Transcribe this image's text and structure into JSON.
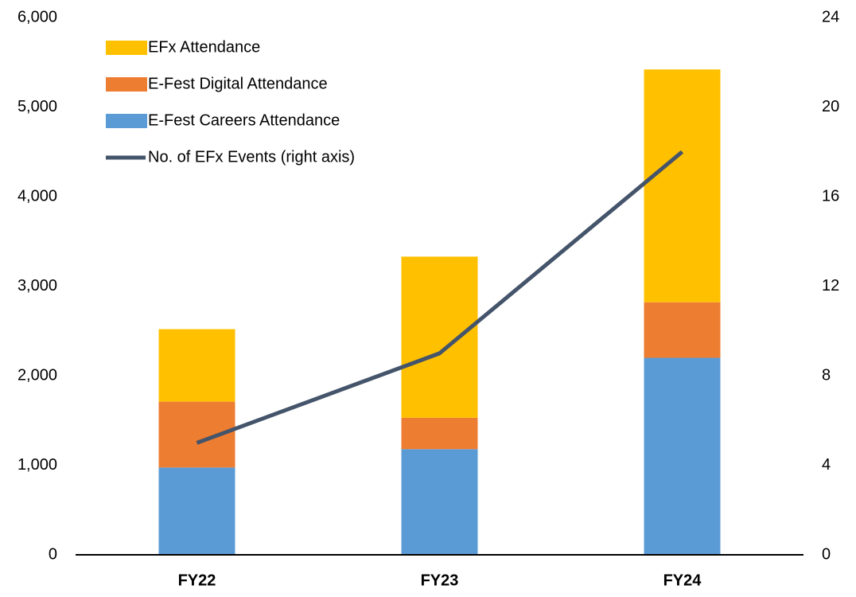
{
  "chart_data": {
    "type": "stacked_bar_line",
    "categories": [
      "FY22",
      "FY23",
      "FY24"
    ],
    "series": [
      {
        "name": "E-Fest Careers Attendance",
        "color": "#5B9BD5",
        "values": [
          975,
          1180,
          2200
        ]
      },
      {
        "name": "E-Fest Digital Attendance",
        "color": "#ED7D31",
        "values": [
          735,
          350,
          620
        ]
      },
      {
        "name": "EFx Attendance",
        "color": "#FFC000",
        "values": [
          810,
          1800,
          2600
        ]
      },
      {
        "name": "No. of EFx Events (right axis)",
        "color": "#44546A",
        "values": [
          5,
          9,
          18
        ],
        "axis": "y2",
        "type": "line"
      }
    ],
    "ylim": [
      0,
      6000
    ],
    "yticks": [
      0,
      {
        "value": 1000,
        "label": "1,000"
      },
      {
        "value": 2000,
        "label": "2,000"
      },
      {
        "value": 3000,
        "label": "3,000"
      },
      {
        "value": 4000,
        "label": "4,000"
      },
      {
        "value": 5000,
        "label": "5,000"
      },
      {
        "value": 6000,
        "label": "6,000"
      }
    ],
    "y2lim": [
      0,
      24
    ],
    "y2ticks": [
      0,
      4,
      8,
      12,
      16,
      20,
      24
    ],
    "legend": "top-left",
    "grid": false
  }
}
